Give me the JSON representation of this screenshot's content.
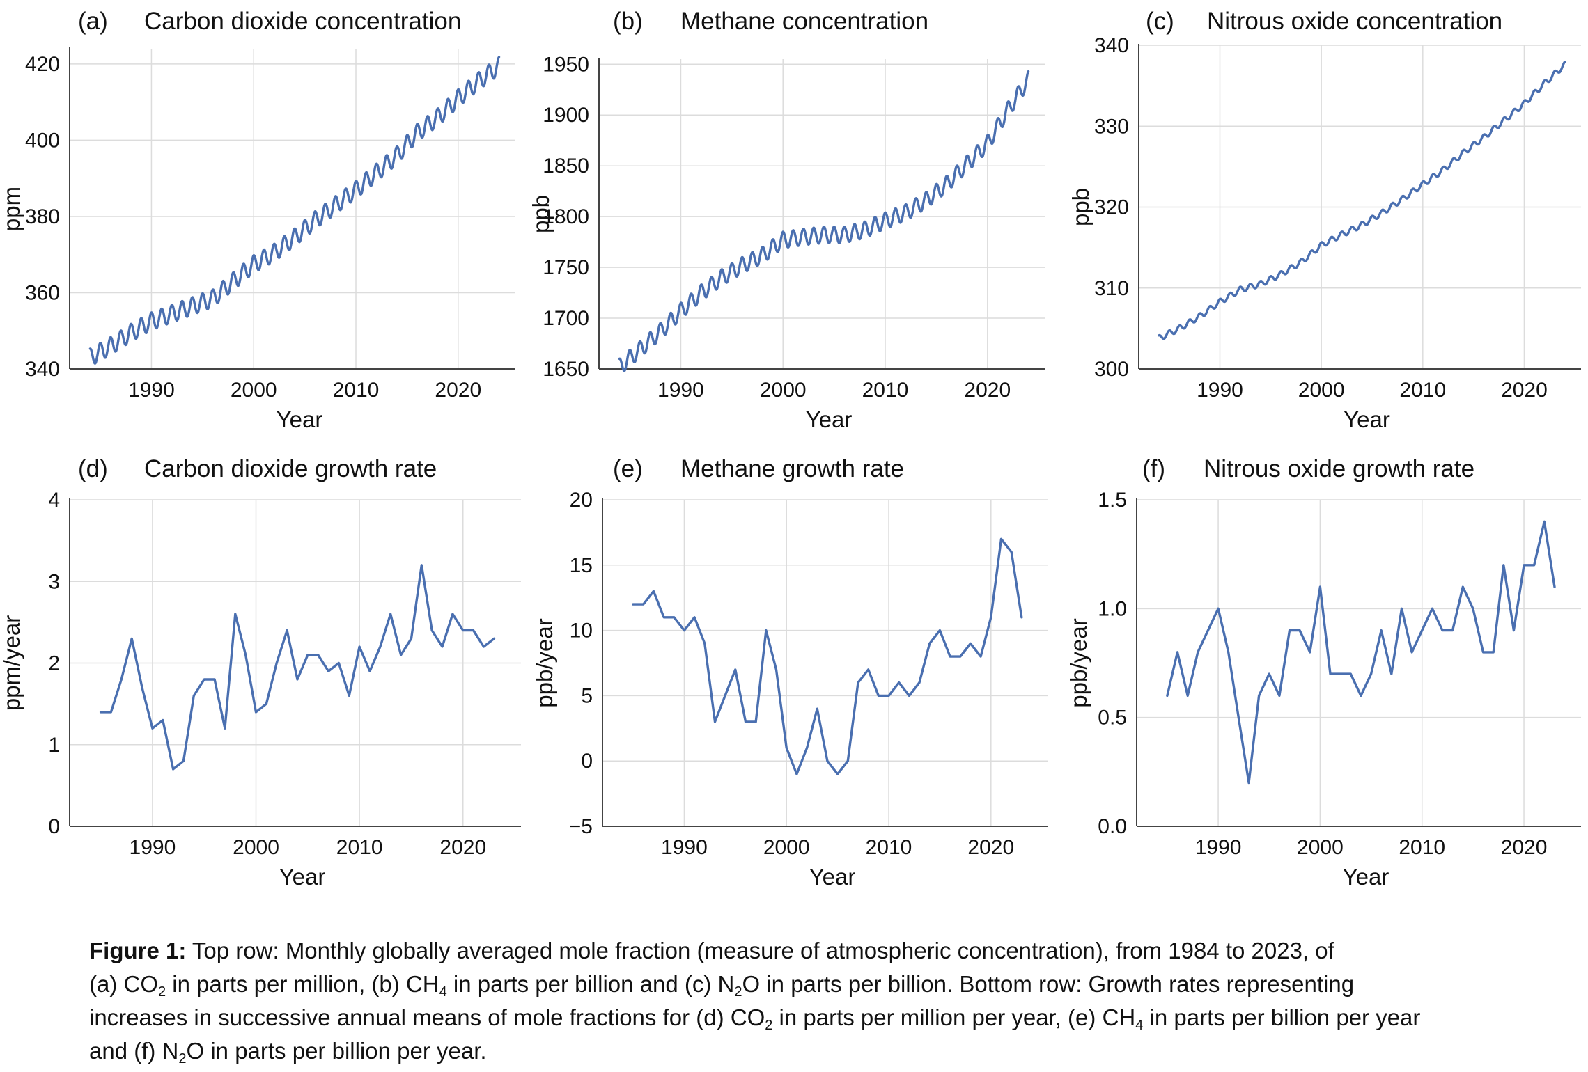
{
  "colors": {
    "series": "#4a6fb0"
  },
  "chart_data": [
    {
      "panel": "(a)",
      "title": "Carbon dioxide concentration",
      "type": "line",
      "xlabel": "Year",
      "ylabel": "ppm",
      "xlim": [
        1982,
        2025.6
      ],
      "ylim": [
        340,
        424
      ],
      "xticks": [
        1990,
        2000,
        2010,
        2020
      ],
      "yticks": [
        340,
        360,
        380,
        400,
        420
      ],
      "seasonal_amplitude": 2.3,
      "x": [
        1984.0,
        1986.0,
        1988.0,
        1990.0,
        1992.0,
        1994.0,
        1996.0,
        1998.0,
        2000.0,
        2002.0,
        2004.0,
        2006.0,
        2008.0,
        2010.0,
        2012.0,
        2014.0,
        2016.0,
        2018.0,
        2020.0,
        2022.0,
        2024.0
      ],
      "y": [
        343.0,
        346.0,
        349.5,
        352.5,
        354.5,
        356.5,
        358.5,
        363.0,
        367.5,
        370.5,
        374.5,
        379.0,
        383.0,
        387.0,
        391.5,
        396.0,
        402.0,
        406.0,
        411.0,
        415.5,
        419.5
      ]
    },
    {
      "panel": "(b)",
      "title": "Methane concentration",
      "type": "line",
      "xlabel": "Year",
      "ylabel": "ppb",
      "xlim": [
        1982,
        2025.6
      ],
      "ylim": [
        1650,
        1955
      ],
      "xticks": [
        1990,
        2000,
        2010,
        2020
      ],
      "yticks": [
        1650,
        1700,
        1750,
        1800,
        1850,
        1900,
        1950
      ],
      "seasonal_amplitude": 8,
      "x": [
        1984.0,
        1986.0,
        1988.0,
        1990.0,
        1992.0,
        1994.0,
        1996.0,
        1998.0,
        2000.0,
        2002.0,
        2004.0,
        2006.0,
        2008.0,
        2010.0,
        2012.0,
        2014.0,
        2016.0,
        2018.0,
        2020.0,
        2022.0,
        2024.0
      ],
      "y": [
        1652.0,
        1669.0,
        1687.0,
        1707.0,
        1725.0,
        1740.0,
        1752.0,
        1762.0,
        1777.0,
        1780.0,
        1782.0,
        1782.0,
        1787.0,
        1796.0,
        1804.0,
        1816.0,
        1832.0,
        1852.0,
        1872.0,
        1905.0,
        1935.0
      ]
    },
    {
      "panel": "(c)",
      "title": "Nitrous oxide concentration",
      "type": "line",
      "xlabel": "Year",
      "ylabel": "ppb",
      "xlim": [
        1982,
        2025.6
      ],
      "ylim": [
        300,
        340
      ],
      "xticks": [
        1990,
        2000,
        2010,
        2020
      ],
      "yticks": [
        300,
        310,
        320,
        330,
        340
      ],
      "seasonal_amplitude": 0.35,
      "x": [
        1984.0,
        1986.0,
        1988.0,
        1990.0,
        1992.0,
        1994.0,
        1996.0,
        1998.0,
        2000.0,
        2002.0,
        2004.0,
        2006.0,
        2008.0,
        2010.0,
        2012.0,
        2014.0,
        2016.0,
        2018.0,
        2020.0,
        2022.0,
        2024.0
      ],
      "y": [
        303.8,
        305.0,
        306.5,
        308.3,
        309.8,
        310.5,
        311.7,
        313.2,
        315.3,
        316.6,
        317.8,
        319.3,
        321.0,
        322.8,
        324.6,
        326.7,
        328.6,
        330.7,
        332.8,
        335.3,
        337.6
      ]
    },
    {
      "panel": "(d)",
      "title": "Carbon dioxide growth rate",
      "type": "line",
      "xlabel": "Year",
      "ylabel": "ppm/year",
      "xlim": [
        1982,
        2025.6
      ],
      "ylim": [
        0,
        4
      ],
      "xticks": [
        1990,
        2000,
        2010,
        2020
      ],
      "yticks": [
        0,
        1,
        2,
        3,
        4
      ],
      "x": [
        1985,
        1986,
        1987,
        1988,
        1989,
        1990,
        1991,
        1992,
        1993,
        1994,
        1995,
        1996,
        1997,
        1998,
        1999,
        2000,
        2001,
        2002,
        2003,
        2004,
        2005,
        2006,
        2007,
        2008,
        2009,
        2010,
        2011,
        2012,
        2013,
        2014,
        2015,
        2016,
        2017,
        2018,
        2019,
        2020,
        2021,
        2022,
        2023
      ],
      "y": [
        1.4,
        1.4,
        1.8,
        2.3,
        1.7,
        1.2,
        1.3,
        0.7,
        0.8,
        1.6,
        1.8,
        1.8,
        1.2,
        2.6,
        2.1,
        1.4,
        1.5,
        2.0,
        2.4,
        1.8,
        2.1,
        2.1,
        1.9,
        2.0,
        1.6,
        2.2,
        1.9,
        2.2,
        2.6,
        2.1,
        2.3,
        3.2,
        2.4,
        2.2,
        2.6,
        2.4,
        2.4,
        2.2,
        2.3
      ]
    },
    {
      "panel": "(e)",
      "title": "Methane growth rate",
      "type": "line",
      "xlabel": "Year",
      "ylabel": "ppb/year",
      "xlim": [
        1982,
        2025.6
      ],
      "ylim": [
        -5,
        20
      ],
      "xticks": [
        1990,
        2000,
        2010,
        2020
      ],
      "yticks": [
        -5,
        0,
        5,
        10,
        15,
        20
      ],
      "ytick_labels": [
        "−5",
        "0",
        "5",
        "10",
        "15",
        "20"
      ],
      "x": [
        1985,
        1986,
        1987,
        1988,
        1989,
        1990,
        1991,
        1992,
        1993,
        1994,
        1995,
        1996,
        1997,
        1998,
        1999,
        2000,
        2001,
        2002,
        2003,
        2004,
        2005,
        2006,
        2007,
        2008,
        2009,
        2010,
        2011,
        2012,
        2013,
        2014,
        2015,
        2016,
        2017,
        2018,
        2019,
        2020,
        2021,
        2022,
        2023
      ],
      "y": [
        12,
        12,
        13,
        11,
        11,
        10,
        11,
        9,
        3,
        5,
        7,
        3,
        3,
        10,
        7,
        1,
        -1,
        1,
        4,
        0,
        -1,
        0,
        6,
        7,
        5,
        5,
        6,
        5,
        6,
        9,
        10,
        8,
        8,
        9,
        8,
        11,
        17,
        16,
        11
      ]
    },
    {
      "panel": "(f)",
      "title": "Nitrous oxide growth rate",
      "type": "line",
      "xlabel": "Year",
      "ylabel": "ppb/year",
      "xlim": [
        1982,
        2025.6
      ],
      "ylim": [
        0,
        1.5
      ],
      "xticks": [
        1990,
        2000,
        2010,
        2020
      ],
      "yticks": [
        0,
        0.5,
        1,
        1.5
      ],
      "ytick_labels": [
        "0.0",
        "0.5",
        "1.0",
        "1.5"
      ],
      "x": [
        1985,
        1986,
        1987,
        1988,
        1989,
        1990,
        1991,
        1992,
        1993,
        1994,
        1995,
        1996,
        1997,
        1998,
        1999,
        2000,
        2001,
        2002,
        2003,
        2004,
        2005,
        2006,
        2007,
        2008,
        2009,
        2010,
        2011,
        2012,
        2013,
        2014,
        2015,
        2016,
        2017,
        2018,
        2019,
        2020,
        2021,
        2022,
        2023
      ],
      "y": [
        0.6,
        0.8,
        0.6,
        0.8,
        0.9,
        1.0,
        0.8,
        0.5,
        0.2,
        0.6,
        0.7,
        0.6,
        0.9,
        0.9,
        0.8,
        1.1,
        0.7,
        0.7,
        0.7,
        0.6,
        0.7,
        0.9,
        0.7,
        1.0,
        0.8,
        0.9,
        1.0,
        0.9,
        0.9,
        1.1,
        1.0,
        0.8,
        0.8,
        1.2,
        0.9,
        1.2,
        1.2,
        1.4,
        1.1
      ]
    }
  ],
  "caption": {
    "label": "Figure 1:",
    "parts": [
      " Top row: Monthly globally averaged mole fraction (measure of atmospheric concentration), from 1984 to 2023, of",
      "(a) CO",
      "2",
      " in parts per million, (b) CH",
      "4",
      " in parts per billion and (c) N",
      "2",
      "O in parts per billion. Bottom row: Growth rates representing",
      "increases in successive annual means of mole fractions for (d) CO",
      "2",
      " in parts per million per year, (e) CH",
      "4",
      " in parts per billion per year",
      "and (f) N",
      "2",
      "O in parts per billion per year."
    ]
  }
}
